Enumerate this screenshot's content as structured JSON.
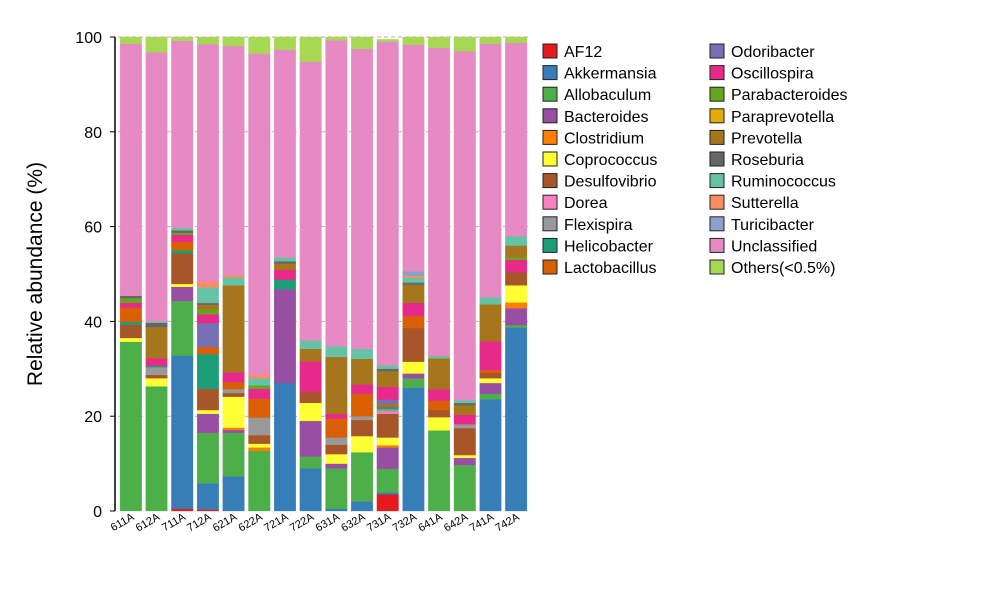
{
  "chart_data": {
    "type": "bar",
    "stacked": true,
    "ylabel": "Relative abundance (%)",
    "xlabel": "",
    "ylim": [
      0,
      100
    ],
    "yticks": [
      0,
      20,
      40,
      60,
      80,
      100
    ],
    "grid": "horizontal dashed at y ticks",
    "legend_position": "right",
    "categories": [
      "611A",
      "612A",
      "711A",
      "712A",
      "621A",
      "622A",
      "721A",
      "722A",
      "631A",
      "632A",
      "731A",
      "732A",
      "641A",
      "642A",
      "741A",
      "742A"
    ],
    "series": [
      {
        "name": "AF12",
        "color": "#e41a1c",
        "values": [
          0,
          0,
          0.5,
          0.3,
          0,
          0,
          0,
          0,
          0,
          0,
          3.5,
          0,
          0,
          0,
          0,
          0
        ]
      },
      {
        "name": "Akkermansia",
        "color": "#377eb8",
        "values": [
          0,
          0,
          32.3,
          5.5,
          7.3,
          0,
          27,
          9,
          0.5,
          2,
          0.4,
          26,
          0,
          0,
          23.6,
          38.7
        ]
      },
      {
        "name": "Allobaculum",
        "color": "#4daf4a",
        "values": [
          35.7,
          26.3,
          11.5,
          10.7,
          9.2,
          12.7,
          0,
          2.5,
          8.5,
          10.4,
          5,
          2,
          17,
          9.7,
          1.1,
          0.5
        ]
      },
      {
        "name": "Bacteroides",
        "color": "#984ea3",
        "values": [
          0,
          0,
          3,
          4,
          0.6,
          0,
          19.8,
          7.5,
          1,
          0,
          4.5,
          1,
          0,
          1.5,
          2.3,
          3.6
        ]
      },
      {
        "name": "Clostridium",
        "color": "#ff7f00",
        "values": [
          0,
          0,
          0,
          0,
          0.5,
          0.7,
          0,
          0,
          0,
          0,
          0.5,
          0,
          0,
          0,
          0,
          1.2
        ]
      },
      {
        "name": "Coprococcus",
        "color": "#ffff33",
        "values": [
          0.8,
          1.7,
          0.6,
          0.8,
          6.5,
          0.8,
          0,
          3.8,
          2,
          3.4,
          1.6,
          2.5,
          2.8,
          0.6,
          1,
          3.6
        ]
      },
      {
        "name": "Desulfovibrio",
        "color": "#a65628",
        "values": [
          2.8,
          0.7,
          6.5,
          4.5,
          0.8,
          1.8,
          0,
          2.3,
          2,
          3.4,
          5,
          7.1,
          1.5,
          5.7,
          1.2,
          2.8
        ]
      },
      {
        "name": "Dorea",
        "color": "#f781bf",
        "values": [
          0,
          0,
          0,
          0,
          0,
          0,
          0,
          0,
          0,
          0,
          0.5,
          0,
          0,
          0,
          0,
          0
        ]
      },
      {
        "name": "Flexispira",
        "color": "#999999",
        "values": [
          0,
          1.6,
          0,
          0,
          0.8,
          3.7,
          0,
          0,
          1.5,
          0.8,
          0.5,
          0,
          0,
          0.8,
          0,
          0
        ]
      },
      {
        "name": "Helicobacter",
        "color": "#1b9e77",
        "values": [
          0.6,
          0.3,
          0.6,
          7.3,
          0,
          0,
          2,
          0,
          0,
          0,
          0.5,
          0,
          0,
          0,
          0,
          0
        ]
      },
      {
        "name": "Lactobacillus",
        "color": "#d95f02",
        "values": [
          3,
          0,
          1.8,
          1.5,
          1.5,
          4,
          0,
          0,
          4,
          4.7,
          0.5,
          2.5,
          2,
          0,
          0.5,
          0
        ]
      },
      {
        "name": "Odoribacter",
        "color": "#7570b3",
        "values": [
          0,
          0,
          0,
          5,
          0,
          0,
          0,
          0,
          0,
          0,
          1,
          0,
          0,
          0,
          0,
          0
        ]
      },
      {
        "name": "Oscillospira",
        "color": "#e7298a",
        "values": [
          1,
          1.6,
          1.5,
          1.9,
          2.1,
          2.1,
          2.1,
          6.5,
          1,
          2,
          2.7,
          2.8,
          2.4,
          2,
          6.1,
          2.6
        ]
      },
      {
        "name": "Parabacteroides",
        "color": "#66a61e",
        "values": [
          1,
          0,
          0.4,
          1,
          0,
          0.7,
          0,
          0,
          0,
          0,
          0,
          0,
          0,
          0,
          0,
          0.5
        ]
      },
      {
        "name": "Paraprevotella",
        "color": "#e6ab02",
        "values": [
          0,
          0,
          0,
          0,
          0,
          0,
          0,
          0,
          0,
          0,
          0,
          0,
          0,
          0,
          0,
          0
        ]
      },
      {
        "name": "Prevotella",
        "color": "#a6761d",
        "values": [
          0,
          6.6,
          0,
          1,
          18.3,
          0,
          1.3,
          2.6,
          12,
          5.4,
          3.3,
          3.8,
          6.5,
          2,
          7.8,
          2.5
        ]
      },
      {
        "name": "Roseburia",
        "color": "#666666",
        "values": [
          0.5,
          0.9,
          0.5,
          0.4,
          0,
          0,
          0.5,
          0,
          0,
          0,
          0.5,
          0.5,
          0,
          0.5,
          0,
          0
        ]
      },
      {
        "name": "Ruminococcus",
        "color": "#66c2a5",
        "values": [
          0,
          0.3,
          0.5,
          3.3,
          1.7,
          1.5,
          0.8,
          1.8,
          2.3,
          2.1,
          0.7,
          1,
          0.5,
          0.6,
          1.5,
          2
        ]
      },
      {
        "name": "Sutterella",
        "color": "#fc8d62",
        "values": [
          0,
          0,
          0,
          1.2,
          0.5,
          0.7,
          0,
          0,
          0,
          0,
          0,
          0.4,
          0,
          0,
          0,
          0
        ]
      },
      {
        "name": "Turicibacter",
        "color": "#8da0cb",
        "values": [
          0,
          0,
          0,
          0,
          0,
          0,
          0,
          0,
          0,
          0,
          0,
          1,
          0,
          0,
          0,
          0
        ]
      },
      {
        "name": "Unclassified",
        "color": "#e78ac3",
        "values": [
          53.2,
          56.8,
          39.5,
          50.1,
          48.3,
          67.8,
          43.8,
          58.8,
          64.5,
          63.3,
          68.3,
          47.8,
          65,
          73.6,
          53.5,
          40.8
        ]
      },
      {
        "name": "Others(<0.5%)",
        "color": "#a6d854",
        "values": [
          1.4,
          3.2,
          0.8,
          1.5,
          1.9,
          3.5,
          2.7,
          5.2,
          0.7,
          2.5,
          0.5,
          1.6,
          2.3,
          3,
          1.4,
          1.2
        ]
      }
    ]
  }
}
